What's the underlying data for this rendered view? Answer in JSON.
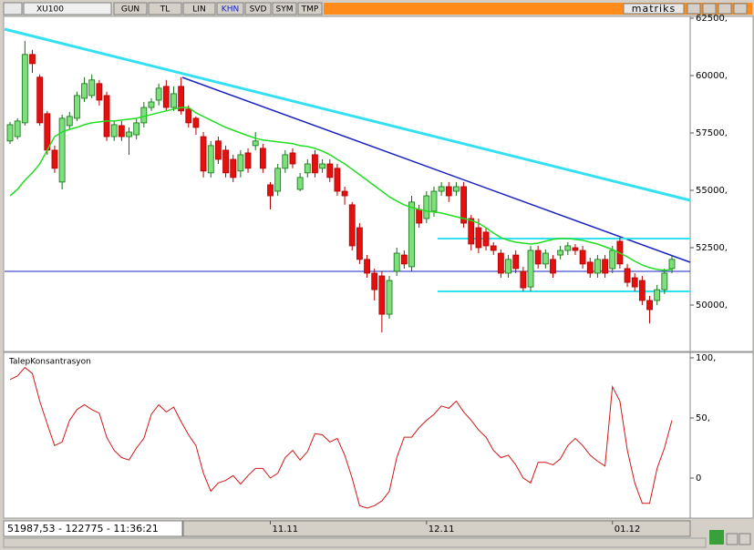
{
  "toolbar": {
    "symbol": "XU100",
    "buttons": [
      "GUN",
      "TL",
      "LIN",
      "KHN",
      "SVD",
      "SYM",
      "TMP"
    ],
    "brand": "matriks"
  },
  "status": "51987,53 - 122775 - 11:36:21",
  "chart_data": [
    {
      "type": "candlestick",
      "categories": [
        null,
        null,
        null,
        null,
        null,
        null,
        null,
        null,
        null,
        null,
        null,
        null,
        null,
        null,
        null,
        null,
        null,
        null,
        null,
        null,
        null,
        null,
        null,
        null,
        null,
        null,
        null,
        null,
        null,
        null,
        null,
        null,
        null,
        null,
        null,
        "11.11",
        null,
        null,
        null,
        null,
        null,
        null,
        null,
        null,
        null,
        null,
        null,
        null,
        null,
        null,
        null,
        null,
        null,
        null,
        null,
        null,
        "12.11",
        null,
        null,
        null,
        null,
        null,
        null,
        null,
        null,
        null,
        null,
        null,
        null,
        null,
        null,
        null,
        null,
        null,
        null,
        null,
        null,
        null,
        null,
        null,
        null,
        "01.12",
        null,
        null,
        null,
        null,
        null,
        null,
        null,
        null
      ],
      "open": [
        57150,
        57340,
        57940,
        60920,
        59930,
        58340,
        56750,
        55360,
        57820,
        58140,
        59010,
        59130,
        59650,
        59130,
        57340,
        57820,
        57340,
        57420,
        57940,
        58610,
        58930,
        59530,
        58610,
        59530,
        58540,
        58140,
        57340,
        55760,
        57150,
        56750,
        56350,
        55840,
        56630,
        56950,
        56830,
        55240,
        54960,
        55960,
        56630,
        55040,
        55760,
        56550,
        55960,
        56150,
        55960,
        54960,
        54370,
        53370,
        51990,
        51390,
        51270,
        49600,
        51470,
        52180,
        51670,
        54170,
        53770,
        54090,
        54960,
        55160,
        54960,
        55160,
        53770,
        53370,
        53180,
        52580,
        52260,
        51390,
        52180,
        51470,
        50790,
        52380,
        51790,
        51990,
        52180,
        52380,
        52500,
        52380,
        51870,
        51390,
        51990,
        51590,
        52780,
        51590,
        51190,
        51070,
        50200,
        50200,
        50670,
        51590
      ],
      "high": [
        57980,
        58140,
        61510,
        61120,
        60050,
        58460,
        56950,
        58300,
        58420,
        59300,
        59930,
        60050,
        59810,
        59300,
        58020,
        58020,
        57740,
        58140,
        58850,
        59010,
        59650,
        59810,
        59530,
        59930,
        58700,
        58220,
        57540,
        57150,
        57340,
        56950,
        56550,
        56750,
        56830,
        57540,
        57030,
        55360,
        56150,
        56750,
        56830,
        55760,
        56350,
        56750,
        56350,
        56350,
        56150,
        55160,
        54490,
        53570,
        52180,
        51590,
        51470,
        51270,
        52500,
        52380,
        54760,
        54370,
        54960,
        55160,
        55360,
        55360,
        55360,
        55360,
        53930,
        53770,
        53370,
        52740,
        52420,
        52180,
        52380,
        51670,
        52580,
        52580,
        52420,
        52180,
        52580,
        52740,
        52660,
        52580,
        52060,
        52180,
        52180,
        52580,
        52940,
        51790,
        51390,
        51270,
        50400,
        50880,
        51590,
        52180
      ],
      "low": [
        57020,
        57220,
        57820,
        60120,
        57820,
        56550,
        55760,
        55040,
        57660,
        58020,
        58850,
        59010,
        58700,
        57150,
        57150,
        57150,
        56550,
        57220,
        57740,
        58460,
        58700,
        58460,
        58460,
        58300,
        57740,
        57420,
        55560,
        55560,
        56150,
        55560,
        55360,
        55560,
        55760,
        56750,
        55760,
        54170,
        54760,
        55760,
        55960,
        54960,
        55560,
        55560,
        55760,
        55360,
        54760,
        54370,
        52380,
        51790,
        51190,
        50200,
        48810,
        49400,
        51270,
        51590,
        51470,
        53370,
        53570,
        53850,
        54760,
        54490,
        54760,
        53370,
        52380,
        52260,
        52380,
        52180,
        51190,
        51190,
        51390,
        50600,
        50600,
        51590,
        51590,
        51190,
        51990,
        52180,
        52180,
        51590,
        51190,
        51190,
        51190,
        51390,
        51590,
        50790,
        50600,
        50000,
        49200,
        50000,
        50480,
        51390
      ],
      "close": [
        57860,
        58020,
        60920,
        60520,
        57940,
        56750,
        55960,
        58140,
        58220,
        59130,
        59650,
        59810,
        58930,
        57340,
        57860,
        57340,
        57540,
        57940,
        58610,
        58850,
        59450,
        58610,
        59210,
        58460,
        57940,
        57740,
        55840,
        56950,
        56350,
        55760,
        55560,
        56550,
        55960,
        57150,
        55960,
        54760,
        55960,
        56550,
        56150,
        55560,
        56150,
        55760,
        56150,
        55560,
        54960,
        54760,
        52580,
        51990,
        51390,
        50670,
        49600,
        51070,
        52260,
        51790,
        54490,
        53570,
        54760,
        54960,
        55160,
        54760,
        55160,
        53570,
        52660,
        52500,
        52580,
        52380,
        51390,
        51990,
        51590,
        50750,
        52380,
        51790,
        52260,
        51390,
        52380,
        52580,
        52380,
        51790,
        51390,
        51990,
        51390,
        52380,
        51790,
        50990,
        50790,
        50200,
        49800,
        50670,
        51390,
        51990
      ],
      "up_color": "#7de07d",
      "down_color": "#e41010",
      "ma": {
        "color": "#22dd22",
        "values": [
          54760,
          55040,
          55440,
          55760,
          56150,
          56750,
          57340,
          57540,
          57660,
          57740,
          57860,
          57940,
          57980,
          58020,
          58020,
          58060,
          58100,
          58140,
          58220,
          58300,
          58380,
          58460,
          58540,
          58610,
          58610,
          58380,
          58220,
          58060,
          57900,
          57740,
          57620,
          57500,
          57380,
          57270,
          57190,
          57150,
          57110,
          57070,
          57030,
          56950,
          56910,
          56830,
          56710,
          56550,
          56350,
          56150,
          55920,
          55680,
          55440,
          55200,
          54960,
          54720,
          54530,
          54370,
          54250,
          54170,
          54090,
          54050,
          54010,
          53930,
          53850,
          53770,
          53690,
          53570,
          53370,
          53140,
          52940,
          52820,
          52740,
          52700,
          52660,
          52700,
          52780,
          52860,
          52900,
          52900,
          52860,
          52820,
          52740,
          52660,
          52540,
          52420,
          52260,
          52100,
          51910,
          51750,
          51630,
          51550,
          51510,
          51550
        ]
      },
      "ylim": [
        48016,
        62579
      ],
      "yticks": [
        {
          "value": 50000,
          "label": "50000,"
        },
        {
          "value": 52500,
          "label": "52500,"
        },
        {
          "value": 55000,
          "label": "55000,"
        },
        {
          "value": 57500,
          "label": "57500,"
        },
        {
          "value": 60000,
          "label": "60000,"
        },
        {
          "value": 62500,
          "label": "62500,"
        }
      ]
    },
    {
      "type": "line",
      "title": "TalepKonsantrasyon",
      "color": "#d01818",
      "values": [
        82,
        85,
        92,
        87,
        64,
        45,
        27,
        30,
        48,
        57,
        61,
        57,
        54,
        34,
        23,
        17,
        15,
        25,
        33,
        53,
        61,
        55,
        59,
        47,
        36,
        27,
        4,
        -11,
        -4,
        -2,
        2,
        -5,
        2,
        8,
        8,
        0,
        4,
        17,
        23,
        15,
        22,
        37,
        36,
        30,
        33,
        19,
        0,
        -23,
        -25,
        -23,
        -19,
        -11,
        17,
        34,
        34,
        42,
        48,
        53,
        60,
        58,
        64,
        55,
        48,
        40,
        34,
        23,
        17,
        19,
        11,
        0,
        -4,
        13,
        13,
        11,
        16,
        27,
        33,
        27,
        19,
        14,
        10,
        76,
        64,
        23,
        -4,
        -21,
        -21,
        8,
        25,
        48
      ],
      "ylim": [
        -32.6,
        103.8
      ],
      "yticks": [
        0,
        {
          "value": 50,
          "label": "50,"
        },
        {
          "value": 100,
          "label": "100,"
        }
      ]
    }
  ]
}
